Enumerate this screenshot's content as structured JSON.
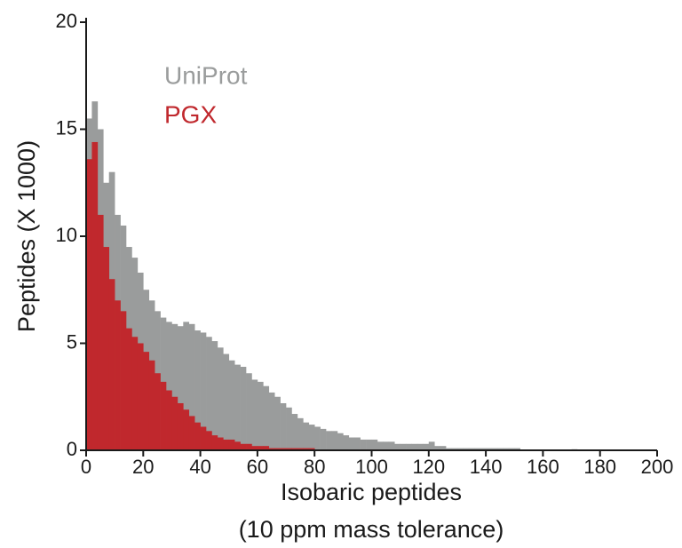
{
  "chart_data": {
    "type": "histogram",
    "ylabel": "Peptides (X 1000)",
    "xlabel": [
      "Isobaric peptides",
      "(10 ppm mass tolerance)"
    ],
    "bins": [
      0,
      2,
      4,
      6,
      8,
      10,
      12,
      14,
      16,
      18,
      20,
      22,
      24,
      26,
      28,
      30,
      32,
      34,
      36,
      38,
      40,
      42,
      44,
      46,
      48,
      50,
      52,
      54,
      56,
      58,
      60,
      62,
      64,
      66,
      68,
      70,
      72,
      74,
      76,
      78,
      80,
      82,
      84,
      86,
      88,
      90,
      92,
      94,
      96,
      98,
      100,
      102,
      104,
      106,
      108,
      110,
      112,
      114,
      116,
      118,
      120,
      122,
      124,
      126,
      128,
      130,
      132,
      134,
      136,
      138,
      140,
      142,
      144,
      146,
      148,
      150,
      152,
      154,
      156,
      158,
      160,
      162,
      164,
      166,
      168,
      170,
      172,
      174,
      176,
      178,
      180,
      182,
      184,
      186,
      188,
      190,
      192,
      194,
      196,
      198,
      200
    ],
    "series": [
      {
        "name": "UniProt",
        "color": "#9a9c9c",
        "values": [
          15.5,
          16.3,
          15.0,
          12.5,
          13.0,
          11.0,
          10.5,
          9.5,
          9.0,
          8.3,
          7.5,
          7.0,
          6.5,
          6.2,
          6.0,
          5.9,
          5.8,
          6.0,
          5.9,
          5.6,
          5.5,
          5.3,
          5.1,
          4.8,
          4.5,
          4.2,
          4.0,
          3.9,
          3.6,
          3.3,
          3.2,
          3.0,
          2.7,
          2.5,
          2.2,
          2.0,
          1.7,
          1.5,
          1.3,
          1.2,
          1.1,
          1.0,
          0.9,
          0.9,
          0.8,
          0.7,
          0.6,
          0.6,
          0.5,
          0.5,
          0.5,
          0.4,
          0.4,
          0.4,
          0.3,
          0.3,
          0.3,
          0.3,
          0.3,
          0.3,
          0.4,
          0.2,
          0.2,
          0.1,
          0.1,
          0.1,
          0.1,
          0.1,
          0.1,
          0.1,
          0.1,
          0.1,
          0.1,
          0.1,
          0.1,
          0.1,
          0,
          0,
          0,
          0,
          0,
          0,
          0,
          0,
          0,
          0.05,
          0,
          0,
          0,
          0,
          0,
          0,
          0,
          0,
          0,
          0,
          0,
          0,
          0,
          0
        ]
      },
      {
        "name": "PGX",
        "color": "#c0282d",
        "values": [
          13.6,
          14.4,
          11.0,
          9.5,
          8.0,
          7.0,
          6.5,
          5.7,
          5.3,
          5.0,
          4.6,
          4.2,
          3.6,
          3.2,
          2.8,
          2.5,
          2.2,
          1.9,
          1.6,
          1.3,
          1.1,
          0.9,
          0.7,
          0.6,
          0.5,
          0.5,
          0.4,
          0.3,
          0.3,
          0.2,
          0.2,
          0.2,
          0.1,
          0.1,
          0.1,
          0.1,
          0.1,
          0.1,
          0.1,
          0.1,
          0,
          0,
          0,
          0,
          0,
          0,
          0,
          0,
          0,
          0,
          0,
          0,
          0,
          0,
          0,
          0,
          0,
          0,
          0,
          0,
          0,
          0,
          0,
          0,
          0,
          0,
          0,
          0,
          0,
          0,
          0,
          0,
          0,
          0,
          0,
          0,
          0,
          0,
          0,
          0,
          0,
          0,
          0,
          0,
          0,
          0,
          0,
          0,
          0,
          0,
          0,
          0,
          0,
          0,
          0,
          0,
          0,
          0,
          0,
          0
        ]
      }
    ],
    "xlim": [
      0,
      200
    ],
    "xticks": [
      0,
      20,
      40,
      60,
      80,
      100,
      120,
      140,
      160,
      180,
      200
    ],
    "ylim": [
      0,
      20
    ],
    "yticks": [
      0,
      5,
      10,
      15,
      20
    ],
    "legend": "upper left"
  }
}
